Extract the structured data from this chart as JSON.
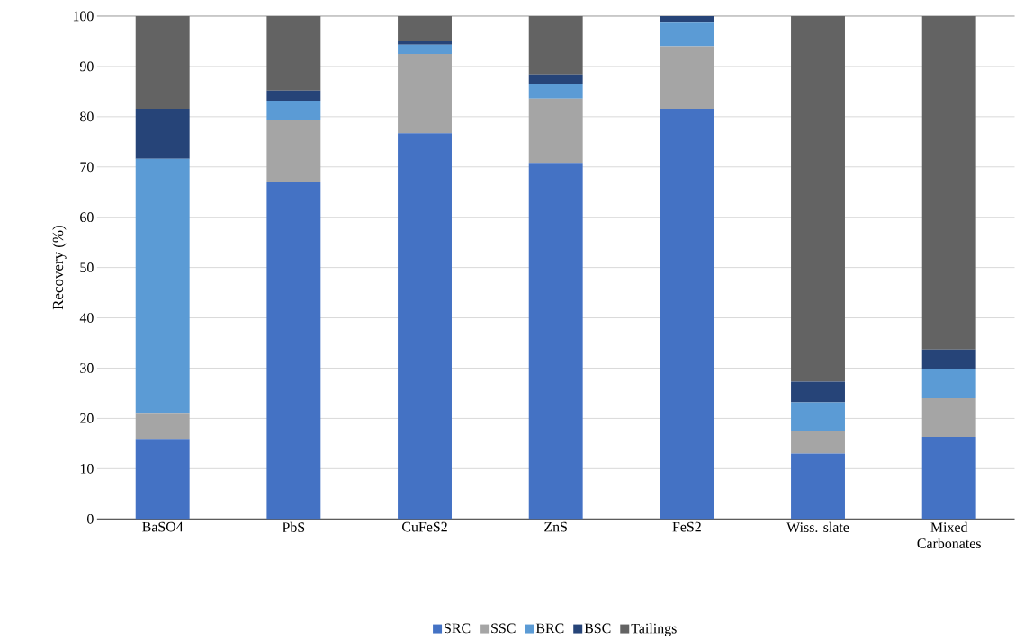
{
  "chart_data": {
    "type": "bar",
    "stacked": true,
    "ylabel": "Recovery (%)",
    "categories": [
      "BaSO4",
      "PbS",
      "CuFeS2",
      "ZnS",
      "FeS2",
      "Wiss. slate",
      "Mixed Carbonates"
    ],
    "series": [
      {
        "name": "SRC",
        "color": "#4472c4",
        "values": [
          15.9,
          67.0,
          76.7,
          70.8,
          81.6,
          13.0,
          16.3
        ]
      },
      {
        "name": "SSC",
        "color": "#a5a5a5",
        "values": [
          5.0,
          12.4,
          15.8,
          12.8,
          12.4,
          4.5,
          7.7
        ]
      },
      {
        "name": "BRC",
        "color": "#5b9bd5",
        "values": [
          50.7,
          3.8,
          1.8,
          3.0,
          4.7,
          5.7,
          5.9
        ]
      },
      {
        "name": "BSC",
        "color": "#264478",
        "values": [
          10.0,
          2.0,
          0.7,
          1.8,
          1.3,
          4.1,
          3.8
        ]
      },
      {
        "name": "Tailings",
        "color": "#636363",
        "values": [
          18.4,
          14.8,
          5.0,
          11.6,
          0.0,
          72.7,
          66.3
        ]
      }
    ],
    "ylim": [
      0,
      100
    ],
    "yticks": [
      0,
      10,
      20,
      30,
      40,
      50,
      60,
      70,
      80,
      90,
      100
    ],
    "grid": "y",
    "legend": "bottom"
  }
}
